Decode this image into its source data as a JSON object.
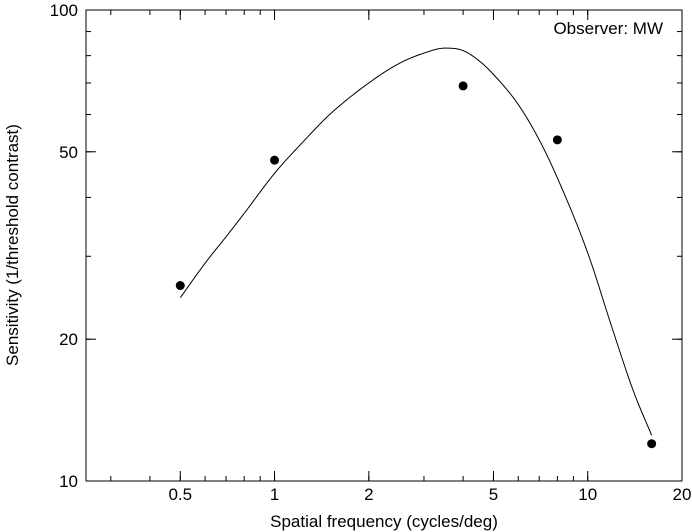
{
  "chart_data": {
    "type": "scatter",
    "title": "",
    "annotation": "Observer: MW",
    "xlabel": "Spatial frequency (cycles/deg)",
    "ylabel": "Sensitivity (1/threshold contrast)",
    "xscale": "log",
    "yscale": "log",
    "xlim": [
      0.25,
      20
    ],
    "ylim": [
      10,
      100
    ],
    "xticks": [
      {
        "value": 0.5,
        "label": "0.5"
      },
      {
        "value": 1,
        "label": "1"
      },
      {
        "value": 2,
        "label": "2"
      },
      {
        "value": 5,
        "label": "5"
      },
      {
        "value": 10,
        "label": "10"
      },
      {
        "value": 20,
        "label": "20"
      }
    ],
    "yticks": [
      {
        "value": 10,
        "label": "10"
      },
      {
        "value": 20,
        "label": "20"
      },
      {
        "value": 50,
        "label": "50"
      },
      {
        "value": 100,
        "label": "100"
      }
    ],
    "grid": false,
    "legend": "none",
    "points": {
      "x": [
        0.5,
        1,
        4,
        8,
        16
      ],
      "y": [
        26,
        48,
        69,
        53,
        12
      ]
    },
    "fit_curve": {
      "x": [
        0.5,
        0.6,
        0.7,
        0.8,
        1.0,
        1.25,
        1.5,
        2.0,
        2.5,
        3.0,
        3.5,
        4.0,
        4.5,
        5.0,
        6.0,
        7.0,
        8.0,
        10.0,
        12.0,
        14.0,
        16.0
      ],
      "y": [
        24.5,
        29,
        33,
        37,
        45,
        53,
        60,
        70,
        77,
        81,
        83,
        82,
        78,
        73,
        63,
        53,
        44,
        30.5,
        21,
        15.5,
        12.5
      ]
    }
  }
}
